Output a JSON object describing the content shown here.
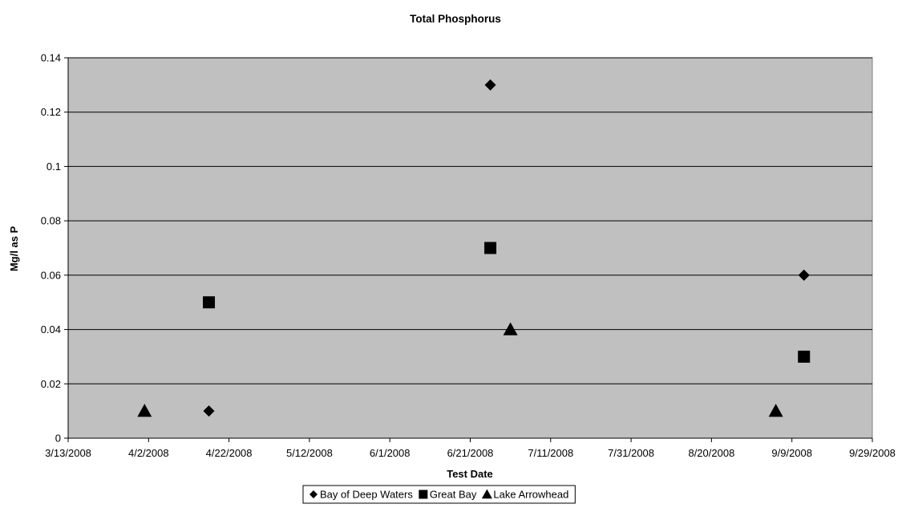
{
  "chart_data": {
    "type": "scatter",
    "title": "Total Phosphorus",
    "xlabel": "Test Date",
    "ylabel": "Mg/l as P",
    "xlim": [
      "3/13/2008",
      "9/29/2008"
    ],
    "ylim": [
      0,
      0.14
    ],
    "x_ticks": [
      "3/13/2008",
      "4/2/2008",
      "4/22/2008",
      "5/12/2008",
      "6/1/2008",
      "6/21/2008",
      "7/11/2008",
      "7/31/2008",
      "8/20/2008",
      "9/9/2008",
      "9/29/2008"
    ],
    "y_ticks": [
      "0",
      "0.02",
      "0.04",
      "0.06",
      "0.08",
      "0.1",
      "0.12",
      "0.14"
    ],
    "grid": "horizontal",
    "legend_position": "bottom",
    "background": "#c0c0c0",
    "series": [
      {
        "name": "Bay of Deep Waters",
        "marker": "diamond",
        "points": [
          {
            "x": "4/17/2008",
            "y": 0.01
          },
          {
            "x": "6/26/2008",
            "y": 0.13
          },
          {
            "x": "9/12/2008",
            "y": 0.06
          }
        ]
      },
      {
        "name": "Great Bay",
        "marker": "square",
        "points": [
          {
            "x": "4/17/2008",
            "y": 0.05
          },
          {
            "x": "6/26/2008",
            "y": 0.07
          },
          {
            "x": "9/12/2008",
            "y": 0.03
          }
        ]
      },
      {
        "name": "Lake Arrowhead",
        "marker": "triangle",
        "points": [
          {
            "x": "4/1/2008",
            "y": 0.01
          },
          {
            "x": "7/1/2008",
            "y": 0.04
          },
          {
            "x": "9/5/2008",
            "y": 0.01
          }
        ]
      }
    ]
  }
}
